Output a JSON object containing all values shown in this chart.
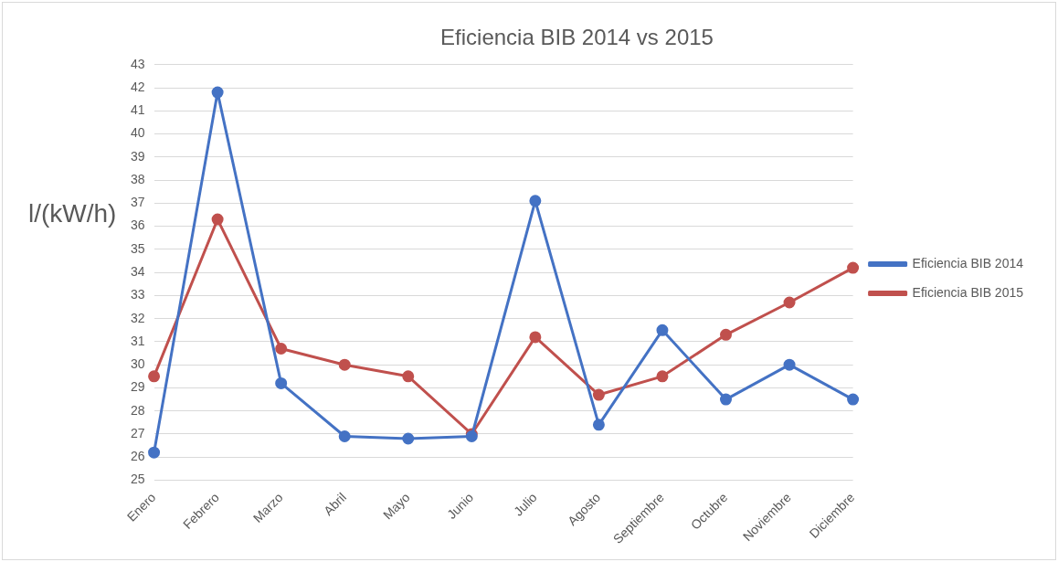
{
  "chart_data": {
    "type": "line",
    "title": "Eficiencia BIB 2014 vs 2015",
    "ylabel": "l/(kW/h)",
    "categories": [
      "Enero",
      "Febrero",
      "Marzo",
      "Abril",
      "Mayo",
      "Junio",
      "Julio",
      "Agosto",
      "Septiembre",
      "Octubre",
      "Noviembre",
      "Diciembre"
    ],
    "series": [
      {
        "name": "Eficiencia BIB 2014",
        "color": "#4472c4",
        "values": [
          26.2,
          41.8,
          29.2,
          26.9,
          26.8,
          26.9,
          37.1,
          27.4,
          31.5,
          28.5,
          30.0,
          28.5
        ]
      },
      {
        "name": "Eficiencia BIB 2015",
        "color": "#c0504d",
        "values": [
          29.5,
          36.3,
          30.7,
          30.0,
          29.5,
          27.0,
          31.2,
          28.7,
          29.5,
          31.3,
          32.7,
          34.2
        ]
      }
    ],
    "ylim": [
      25,
      43
    ],
    "yticks": [
      25,
      26,
      27,
      28,
      29,
      30,
      31,
      32,
      33,
      34,
      35,
      36,
      37,
      38,
      39,
      40,
      41,
      42,
      43
    ],
    "grid": "y",
    "legend": "right",
    "marker": "circle",
    "line_style": "solid"
  }
}
